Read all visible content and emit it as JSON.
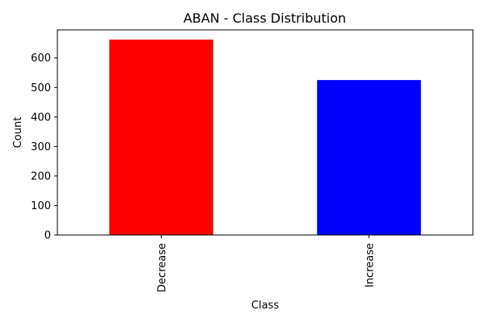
{
  "chart_data": {
    "type": "bar",
    "title": "ABAN - Class Distribution",
    "xlabel": "Class",
    "ylabel": "Count",
    "categories": [
      "Decrease",
      "Increase"
    ],
    "values": [
      662,
      525
    ],
    "colors": [
      "#ff0000",
      "#0000ff"
    ],
    "ylim": [
      0,
      695
    ],
    "yticks": [
      0,
      100,
      200,
      300,
      400,
      500,
      600
    ],
    "grid": false,
    "legend": "none"
  }
}
